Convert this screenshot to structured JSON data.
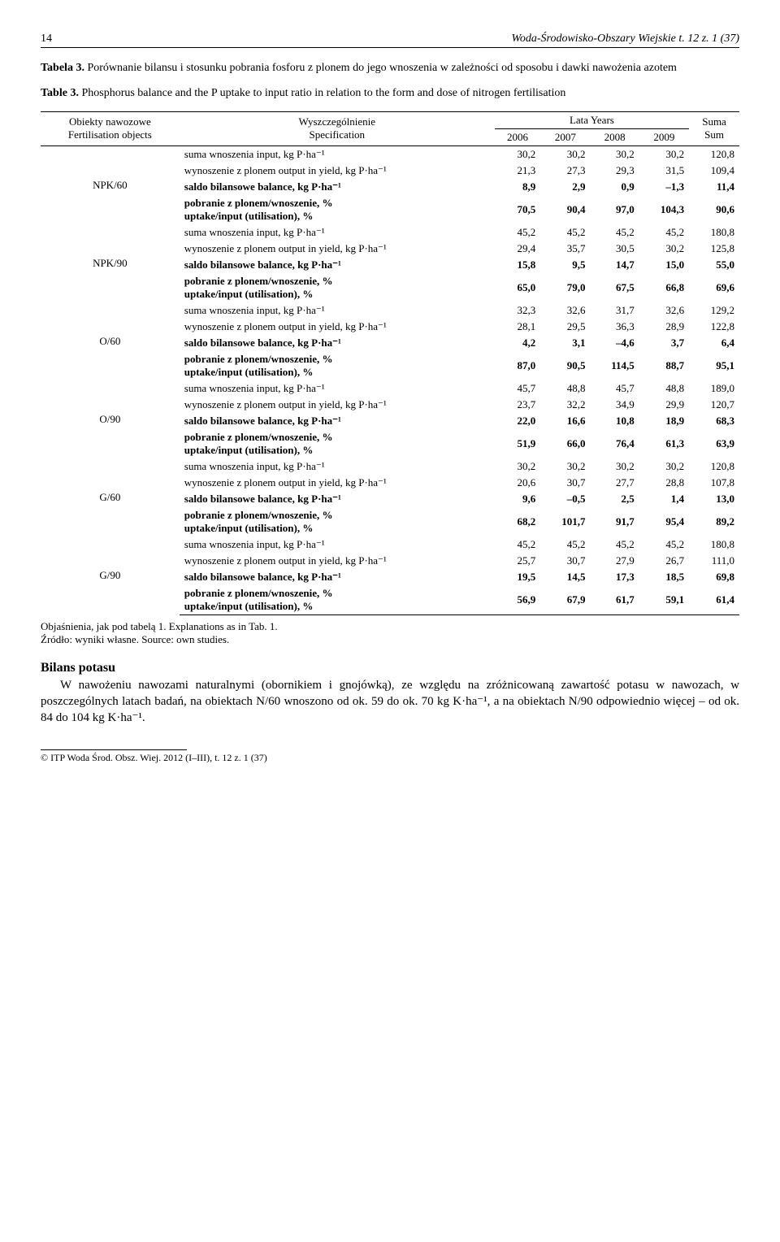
{
  "header": {
    "page_num": "14",
    "running_title": "Woda-Środowisko-Obszary Wiejskie t. 12 z. 1 (37)"
  },
  "captions": {
    "pl": "Tabela 3. Porównanie bilansu i stosunku pobrania fosforu z plonem do jego wnoszenia w zależności od sposobu i dawki nawożenia azotem",
    "en": "Table 3. Phosphorus balance and the P uptake to input ratio in relation to the form and dose of nitrogen fertilisation"
  },
  "table": {
    "head": {
      "objects_pl": "Obiekty\nnawozowe",
      "objects_en": "Fertilisation\nobjects",
      "spec_pl": "Wyszczególnienie",
      "spec_en": "Specification",
      "years_label": "Lata  Years",
      "years": [
        "2006",
        "2007",
        "2008",
        "2009"
      ],
      "sum_pl": "Suma",
      "sum_en": "Sum"
    },
    "row_labels": {
      "input": "suma wnoszenia  input, kg P·ha⁻¹",
      "output": "wynoszenie z plonem  output in yield, kg P·ha⁻¹",
      "balance": "saldo bilansowe  balance, kg P·ha⁻¹",
      "uptake1": "pobranie z plonem/wnoszenie, %",
      "uptake2": "uptake/input (utilisation), %"
    },
    "groups": [
      {
        "id": "NPK/60",
        "input": [
          "30,2",
          "30,2",
          "30,2",
          "30,2",
          "120,8"
        ],
        "output": [
          "21,3",
          "27,3",
          "29,3",
          "31,5",
          "109,4"
        ],
        "balance": [
          "8,9",
          "2,9",
          "0,9",
          "–1,3",
          "11,4"
        ],
        "uptake": [
          "70,5",
          "90,4",
          "97,0",
          "104,3",
          "90,6"
        ]
      },
      {
        "id": "NPK/90",
        "input": [
          "45,2",
          "45,2",
          "45,2",
          "45,2",
          "180,8"
        ],
        "output": [
          "29,4",
          "35,7",
          "30,5",
          "30,2",
          "125,8"
        ],
        "balance": [
          "15,8",
          "9,5",
          "14,7",
          "15,0",
          "55,0"
        ],
        "uptake": [
          "65,0",
          "79,0",
          "67,5",
          "66,8",
          "69,6"
        ]
      },
      {
        "id": "O/60",
        "input": [
          "32,3",
          "32,6",
          "31,7",
          "32,6",
          "129,2"
        ],
        "output": [
          "28,1",
          "29,5",
          "36,3",
          "28,9",
          "122,8"
        ],
        "balance": [
          "4,2",
          "3,1",
          "–4,6",
          "3,7",
          "6,4"
        ],
        "uptake": [
          "87,0",
          "90,5",
          "114,5",
          "88,7",
          "95,1"
        ]
      },
      {
        "id": "O/90",
        "input": [
          "45,7",
          "48,8",
          "45,7",
          "48,8",
          "189,0"
        ],
        "output": [
          "23,7",
          "32,2",
          "34,9",
          "29,9",
          "120,7"
        ],
        "balance": [
          "22,0",
          "16,6",
          "10,8",
          "18,9",
          "68,3"
        ],
        "uptake": [
          "51,9",
          "66,0",
          "76,4",
          "61,3",
          "63,9"
        ]
      },
      {
        "id": "G/60",
        "input": [
          "30,2",
          "30,2",
          "30,2",
          "30,2",
          "120,8"
        ],
        "output": [
          "20,6",
          "30,7",
          "27,7",
          "28,8",
          "107,8"
        ],
        "balance": [
          "9,6",
          "–0,5",
          "2,5",
          "1,4",
          "13,0"
        ],
        "uptake": [
          "68,2",
          "101,7",
          "91,7",
          "95,4",
          "89,2"
        ]
      },
      {
        "id": "G/90",
        "input": [
          "45,2",
          "45,2",
          "45,2",
          "45,2",
          "180,8"
        ],
        "output": [
          "25,7",
          "30,7",
          "27,9",
          "26,7",
          "111,0"
        ],
        "balance": [
          "19,5",
          "14,5",
          "17,3",
          "18,5",
          "69,8"
        ],
        "uptake": [
          "56,9",
          "67,9",
          "61,7",
          "59,1",
          "61,4"
        ]
      }
    ]
  },
  "notes": {
    "explain": "Objaśnienia, jak pod tabelą 1.   Explanations as in Tab. 1.",
    "source": "Źródło: wyniki własne.   Source: own studies."
  },
  "section": {
    "heading": "Bilans potasu",
    "para": "W nawożeniu nawozami naturalnymi (obornikiem i gnojówką), ze względu na zróżnicowaną zawartość potasu w nawozach, w poszczególnych latach badań, na obiektach N/60 wnoszono od ok. 59 do ok. 70 kg K·ha⁻¹, a na obiektach N/90 odpowiednio więcej – od ok. 84 do 104 kg K·ha⁻¹."
  },
  "footer": "© ITP Woda Środ. Obsz. Wiej. 2012 (I–III), t. 12 z. 1 (37)"
}
